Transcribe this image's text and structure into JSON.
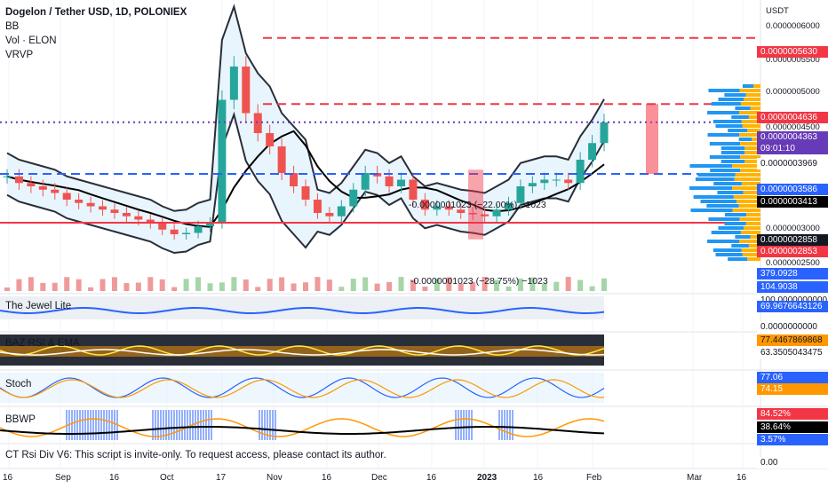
{
  "header": {
    "symbol": "Dogelon / Tether USD, 1D, POLONIEX",
    "indicators": [
      "BB",
      "Vol · ELON",
      "VRVP"
    ]
  },
  "currency": "USDT",
  "price_axis_labels": [
    "0.0000006000",
    "0.0000005500",
    "0.0000005000",
    "0.0000004500",
    "0.0000003000",
    "0.0000002500"
  ],
  "price_tags": [
    {
      "text": "0.0000005630",
      "bg": "#f23645",
      "fg": "#ffffff"
    },
    {
      "text": "0.0000004636",
      "bg": "#f23645",
      "fg": "#ffffff"
    },
    {
      "text": "0.0000004363",
      "bg": "#673ab7",
      "fg": "#ffffff"
    },
    {
      "text": "09:01:10",
      "bg": "#673ab7",
      "fg": "#ffffff"
    },
    {
      "text": "0.0000003969",
      "bg": "#ffffff",
      "fg": "#131722"
    },
    {
      "text": "0.0000003586",
      "bg": "#2962ff",
      "fg": "#ffffff"
    },
    {
      "text": "0.0000003413",
      "bg": "#000000",
      "fg": "#ffffff"
    },
    {
      "text": "0.0000002858",
      "bg": "#131722",
      "fg": "#ffffff"
    },
    {
      "text": "0.0000002853",
      "bg": "#f23645",
      "fg": "#ffffff"
    },
    {
      "text": "379.0928",
      "bg": "#2962ff",
      "fg": "#ffffff"
    },
    {
      "text": "104.9038",
      "bg": "#2962ff",
      "fg": "#ffffff"
    }
  ],
  "annotations": [
    {
      "text": "-0.0000001023 (−22.00%) −1023"
    },
    {
      "text": "-0.0000001023 (−28.75%) −1023"
    }
  ],
  "panes": [
    {
      "title": "The Jewel Lite",
      "tags": [
        {
          "text": "100.0000000000",
          "bg": "#ffffff",
          "fg": "#131722"
        },
        {
          "text": "69.9676643126",
          "bg": "#2962ff",
          "fg": "#ffffff"
        },
        {
          "text": "0.0000000000",
          "bg": "#ffffff",
          "fg": "#131722"
        }
      ]
    },
    {
      "title": "BAZ RSI & EMA",
      "tags": [
        {
          "text": "77.4467869868",
          "bg": "#ff9800",
          "fg": "#131722"
        },
        {
          "text": "63.3505043475",
          "bg": "#ffffff",
          "fg": "#131722"
        }
      ]
    },
    {
      "title": "Stoch",
      "tags": [
        {
          "text": "77.06",
          "bg": "#2962ff",
          "fg": "#ffffff"
        },
        {
          "text": "74.15",
          "bg": "#ff9800",
          "fg": "#ffffff"
        }
      ]
    },
    {
      "title": "BBWP",
      "tags": [
        {
          "text": "84.52%",
          "bg": "#f23645",
          "fg": "#ffffff"
        },
        {
          "text": "38.64%",
          "bg": "#000000",
          "fg": "#ffffff"
        },
        {
          "text": "3.57%",
          "bg": "#2962ff",
          "fg": "#ffffff"
        },
        {
          "text": "0.00",
          "bg": "#ffffff",
          "fg": "#131722"
        }
      ]
    }
  ],
  "footer_note": "CT Rsi Div V6: This script is invite-only. To request access, please contact its author.",
  "x_axis_labels": [
    "16",
    "Sep",
    "16",
    "Oct",
    "17",
    "Nov",
    "16",
    "Dec",
    "16",
    "2023",
    "16",
    "Feb",
    "Mar",
    "16"
  ],
  "colors": {
    "up": "#26a69a",
    "down": "#ef5350",
    "bb": "#2a2e39",
    "bb_fill": "#e3f2fd",
    "resistance": "#f23645",
    "support": "#2962ff",
    "last_price": "#673ab7",
    "volume_profile_up": "#2196f3",
    "volume_profile_down": "#ffb300"
  },
  "chart_data": {
    "type": "candlestick",
    "pair": "ELON/USDT",
    "timeframe": "1D",
    "last_price": 4.363e-07,
    "levels": {
      "resistance_high": 5.63e-07,
      "resistance": 4.636e-07,
      "open_level": 3.969e-07,
      "support_blue": 3.586e-07,
      "ma_value": 3.413e-07,
      "support_red": 2.853e-07,
      "lower_band": 2.858e-07
    },
    "y_range": [
      1.8e-07,
      6.2e-07
    ],
    "close_series": [
      3.55e-07,
      3.45e-07,
      3.4e-07,
      3.35e-07,
      3.3e-07,
      3.2e-07,
      3.15e-07,
      3.1e-07,
      3.05e-07,
      3e-07,
      2.95e-07,
      2.9e-07,
      2.85e-07,
      2.75e-07,
      2.68e-07,
      2.7e-07,
      2.8e-07,
      2.85e-07,
      4.7e-07,
      5.2e-07,
      4.5e-07,
      4.2e-07,
      4e-07,
      3.6e-07,
      3.4e-07,
      3.2e-07,
      3e-07,
      2.95e-07,
      3.1e-07,
      3.35e-07,
      3.6e-07,
      3.55e-07,
      3.4e-07,
      3.5e-07,
      3.2e-07,
      3.05e-07,
      3.1e-07,
      3.05e-07,
      3e-07,
      2.98e-07,
      2.95e-07,
      3.05e-07,
      3.15e-07,
      3.4e-07,
      3.45e-07,
      3.5e-07,
      3.5e-07,
      3.45e-07,
      3.8e-07,
      4.05e-07,
      4.36e-07
    ],
    "volume": [],
    "indicators": {
      "jewel_lite": 69.9676643126,
      "baz_rsi": 77.4467869868,
      "baz_ema": 63.3505043475,
      "stoch_k": 77.06,
      "stoch_d": 74.15,
      "bbwp": 84.52,
      "bbwp_ma": 38.64,
      "bbwp_low": 3.57
    }
  }
}
